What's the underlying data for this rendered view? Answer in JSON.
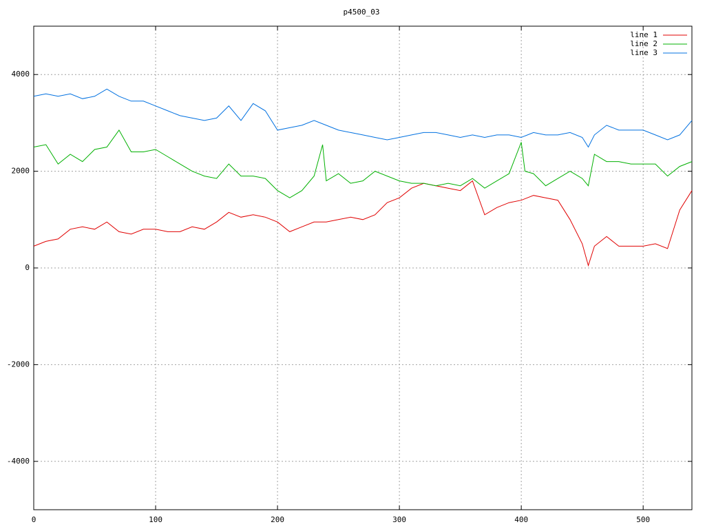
{
  "chart_data": {
    "type": "line",
    "title": "p4500_03",
    "xlim": [
      0,
      540
    ],
    "xticks": [
      0,
      100,
      200,
      300,
      400,
      500
    ],
    "ylim": [
      -5000,
      5000
    ],
    "yticks": [
      -4000,
      -2000,
      0,
      2000,
      4000
    ],
    "grid": true,
    "legend": "top-right",
    "series": [
      {
        "name": "line 1",
        "color": "#e00000",
        "x": [
          0,
          10,
          20,
          30,
          40,
          50,
          60,
          70,
          80,
          90,
          100,
          110,
          120,
          130,
          140,
          150,
          160,
          170,
          180,
          190,
          200,
          210,
          220,
          230,
          240,
          250,
          260,
          270,
          280,
          290,
          300,
          310,
          320,
          330,
          340,
          350,
          360,
          370,
          380,
          390,
          400,
          410,
          420,
          430,
          440,
          450,
          455,
          460,
          470,
          480,
          490,
          500,
          510,
          520,
          530,
          540
        ],
        "values": [
          450,
          550,
          600,
          800,
          850,
          800,
          950,
          750,
          700,
          800,
          800,
          750,
          750,
          850,
          800,
          950,
          1150,
          1050,
          1100,
          1050,
          950,
          750,
          850,
          950,
          950,
          1000,
          1050,
          1000,
          1100,
          1350,
          1450,
          1650,
          1750,
          1700,
          1650,
          1600,
          1800,
          1100,
          1250,
          1350,
          1400,
          1500,
          1450,
          1400,
          1000,
          500,
          50,
          450,
          650,
          450,
          450,
          450,
          500,
          400,
          1200,
          1600
        ]
      },
      {
        "name": "line 2",
        "color": "#00b000",
        "x": [
          0,
          10,
          20,
          30,
          40,
          50,
          60,
          70,
          80,
          90,
          100,
          110,
          120,
          130,
          140,
          150,
          160,
          170,
          180,
          190,
          200,
          210,
          220,
          230,
          237,
          240,
          250,
          260,
          270,
          280,
          290,
          300,
          310,
          320,
          330,
          340,
          350,
          360,
          370,
          380,
          390,
          400,
          403,
          410,
          420,
          430,
          440,
          450,
          455,
          460,
          470,
          480,
          490,
          500,
          510,
          520,
          530,
          540
        ],
        "values": [
          2500,
          2550,
          2150,
          2350,
          2200,
          2450,
          2500,
          2850,
          2400,
          2400,
          2450,
          2300,
          2150,
          2000,
          1900,
          1850,
          2150,
          1900,
          1900,
          1850,
          1600,
          1450,
          1600,
          1900,
          2550,
          1800,
          1950,
          1750,
          1800,
          2000,
          1900,
          1800,
          1750,
          1750,
          1700,
          1750,
          1700,
          1850,
          1650,
          1800,
          1950,
          2600,
          2000,
          1950,
          1700,
          1850,
          2000,
          1850,
          1700,
          2350,
          2200,
          2200,
          2150,
          2150,
          2150,
          1900,
          2100,
          2200
        ]
      },
      {
        "name": "line 3",
        "color": "#0070e0",
        "x": [
          0,
          10,
          20,
          30,
          40,
          50,
          60,
          70,
          80,
          90,
          100,
          110,
          120,
          130,
          140,
          150,
          160,
          170,
          180,
          190,
          200,
          210,
          220,
          230,
          240,
          250,
          260,
          270,
          280,
          290,
          300,
          310,
          320,
          330,
          340,
          350,
          360,
          370,
          380,
          390,
          400,
          410,
          420,
          430,
          440,
          450,
          455,
          460,
          470,
          480,
          490,
          500,
          510,
          520,
          530,
          540
        ],
        "values": [
          3550,
          3600,
          3550,
          3600,
          3500,
          3550,
          3700,
          3550,
          3450,
          3450,
          3350,
          3250,
          3150,
          3100,
          3050,
          3100,
          3350,
          3050,
          3400,
          3250,
          2850,
          2900,
          2950,
          3050,
          2950,
          2850,
          2800,
          2750,
          2700,
          2650,
          2700,
          2750,
          2800,
          2800,
          2750,
          2700,
          2750,
          2700,
          2750,
          2750,
          2700,
          2800,
          2750,
          2750,
          2800,
          2700,
          2500,
          2750,
          2950,
          2850,
          2850,
          2850,
          2750,
          2650,
          2750,
          3050
        ]
      }
    ]
  }
}
